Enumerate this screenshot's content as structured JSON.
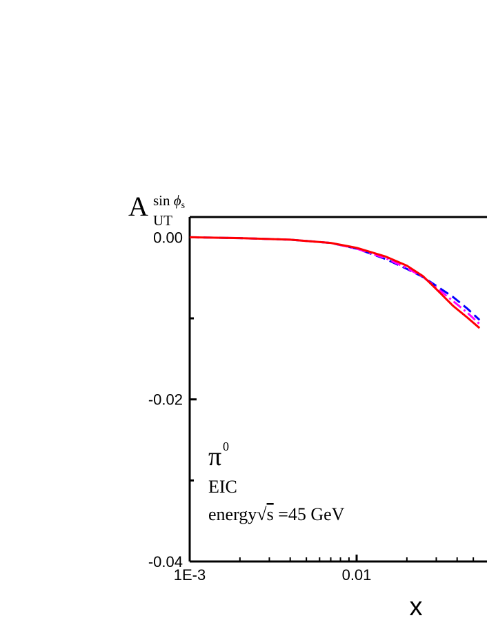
{
  "chart_data": {
    "type": "line",
    "xlabel": "x",
    "x_scale": "log",
    "xlim": [
      0.001,
      0.0545
    ],
    "ylim": [
      -0.04,
      0.0025
    ],
    "x_ticks": [
      {
        "value": 0.001,
        "label": "1E-3"
      },
      {
        "value": 0.01,
        "label": "0.01"
      }
    ],
    "y_ticks": [
      {
        "value": 0.0,
        "label": "0.00"
      },
      {
        "value": -0.02,
        "label": "-0.02"
      },
      {
        "value": -0.04,
        "label": "-0.04"
      }
    ],
    "y_minor_ticks": [
      -0.01,
      -0.03
    ],
    "ylabel": {
      "main": "A",
      "sub": "UT",
      "sup_prefix": "sin ",
      "sup_phi": "ϕ",
      "sup_sub": "s"
    },
    "annotations": {
      "particle": "π",
      "particle_sup": "0",
      "experiment": "EIC",
      "energy_prefix": "energy",
      "energy_sqrt": "√",
      "energy_s": "s",
      "energy_value": " =45 GeV"
    },
    "series": [
      {
        "color": "#ff0000",
        "dash": "solid",
        "x": [
          0.001,
          0.002,
          0.004,
          0.007,
          0.01,
          0.015,
          0.02,
          0.025,
          0.03,
          0.038,
          0.046,
          0.0545
        ],
        "y": [
          0.0,
          -0.0001,
          -0.0003,
          -0.0007,
          -0.0013,
          -0.0024,
          -0.0035,
          -0.0048,
          -0.0064,
          -0.0085,
          -0.0099,
          -0.0112
        ]
      },
      {
        "color": "#0000ff",
        "dash": "dashed",
        "x": [
          0.001,
          0.002,
          0.004,
          0.007,
          0.01,
          0.015,
          0.02,
          0.025,
          0.03,
          0.038,
          0.046,
          0.0545
        ],
        "y": [
          0.0,
          -0.0001,
          -0.0003,
          -0.0007,
          -0.0014,
          -0.0027,
          -0.0039,
          -0.0049,
          -0.006,
          -0.0074,
          -0.0088,
          -0.0102
        ]
      },
      {
        "color": "#ff00ff",
        "dash": "dashdot",
        "x": [
          0.001,
          0.002,
          0.004,
          0.007,
          0.01,
          0.015,
          0.02,
          0.025,
          0.03,
          0.038,
          0.046,
          0.0545
        ],
        "y": [
          0.0,
          -0.0001,
          -0.0003,
          -0.0007,
          -0.0014,
          -0.0026,
          -0.0038,
          -0.0049,
          -0.0062,
          -0.0079,
          -0.0093,
          -0.0107
        ]
      }
    ]
  }
}
